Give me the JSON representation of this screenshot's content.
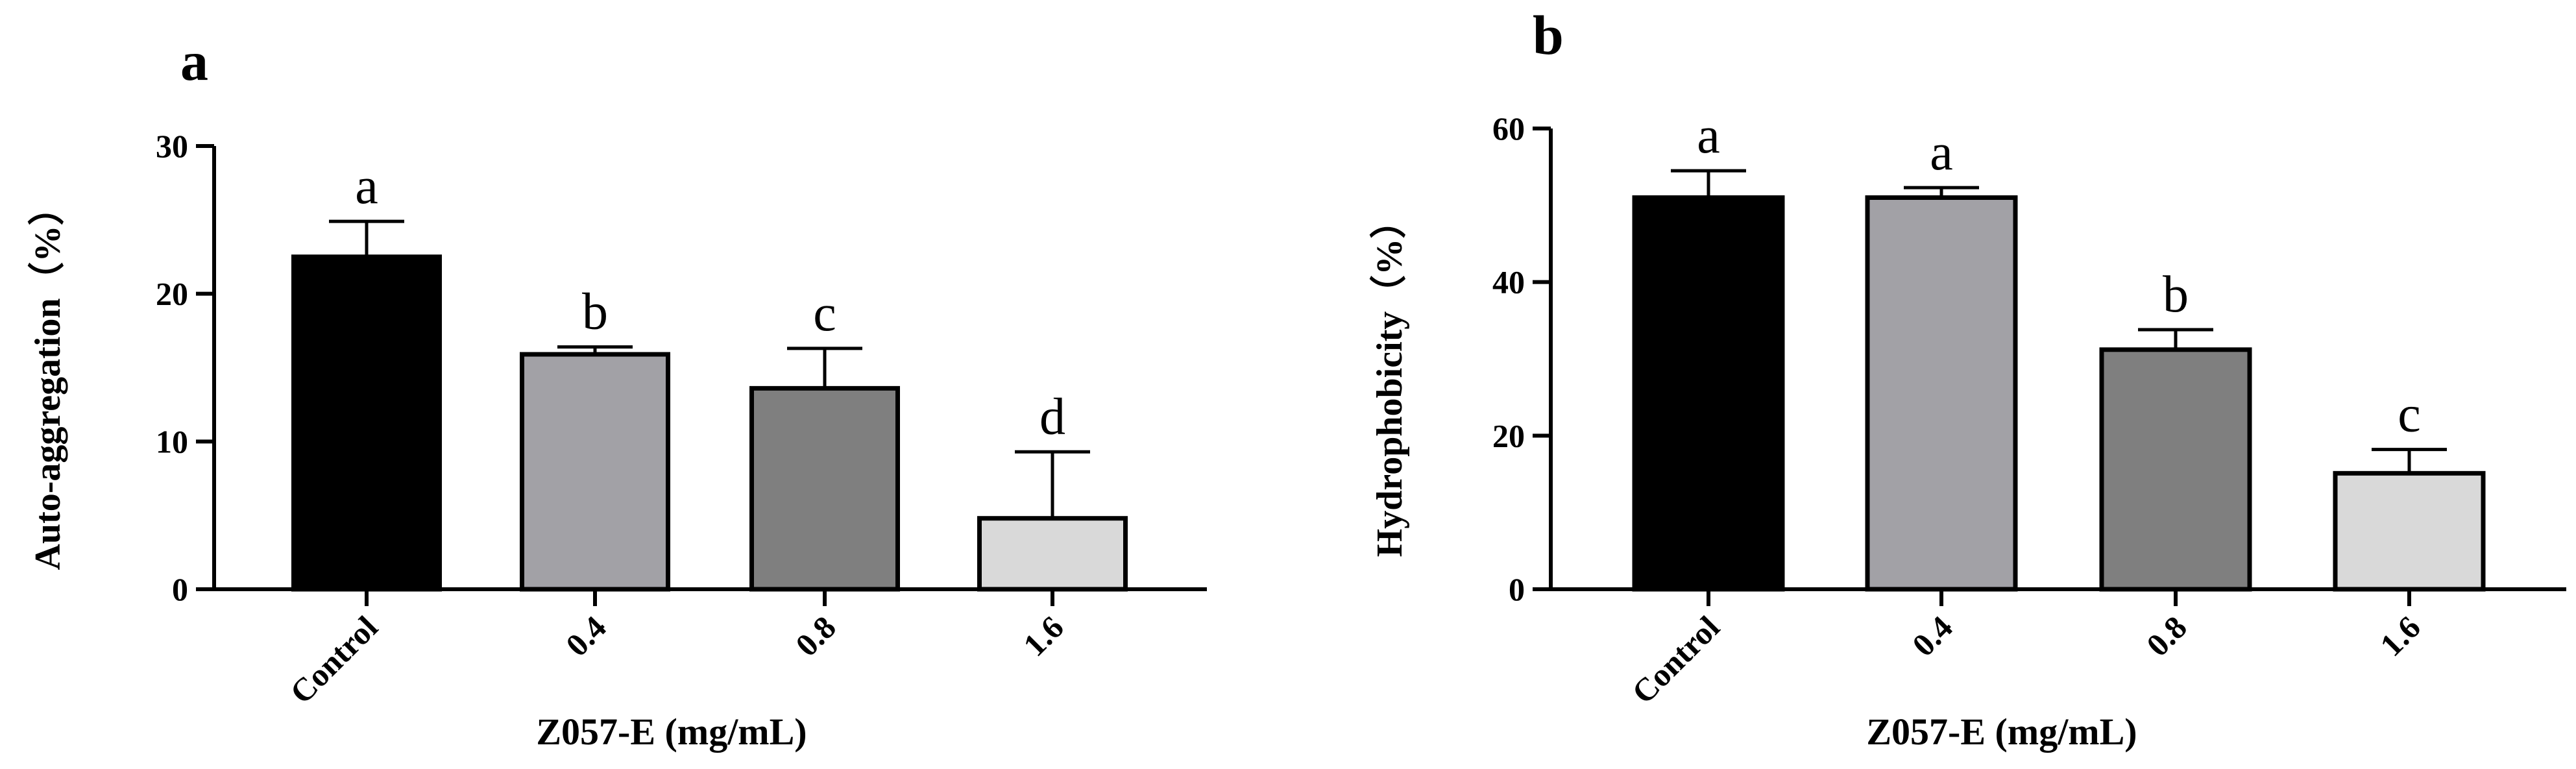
{
  "chart_data": [
    {
      "type": "bar",
      "panel_label": "a",
      "categories": [
        "Control",
        "0.4",
        "0.8",
        "1.6"
      ],
      "values": [
        22.5,
        15.9,
        13.6,
        4.8
      ],
      "errors": [
        2.4,
        0.5,
        2.7,
        4.5
      ],
      "significance": [
        "a",
        "b",
        "c",
        "d"
      ],
      "colors": [
        "#000000",
        "#a2a1a6",
        "#7f7f7f",
        "#d9d9d9"
      ],
      "xlabel": "Z057-E (mg/mL)",
      "ylabel": "Auto-aggregation（%）",
      "ylim": [
        0,
        30
      ],
      "yticks": [
        0,
        10,
        20,
        30
      ],
      "grid": false,
      "legend": "none"
    },
    {
      "type": "bar",
      "panel_label": "b",
      "categories": [
        "Control",
        "0.4",
        "0.8",
        "1.6"
      ],
      "values": [
        51.0,
        51.0,
        31.2,
        15.1
      ],
      "errors": [
        3.5,
        1.3,
        2.6,
        3.1
      ],
      "significance": [
        "a",
        "a",
        "b",
        "c"
      ],
      "colors": [
        "#000000",
        "#a2a1a6",
        "#7f7f7f",
        "#d9d9d9"
      ],
      "xlabel": "Z057-E (mg/mL)",
      "ylabel": "Hydrophobicity（%）",
      "ylim": [
        0,
        60
      ],
      "yticks": [
        0,
        20,
        40,
        60
      ],
      "grid": false,
      "legend": "none"
    }
  ]
}
